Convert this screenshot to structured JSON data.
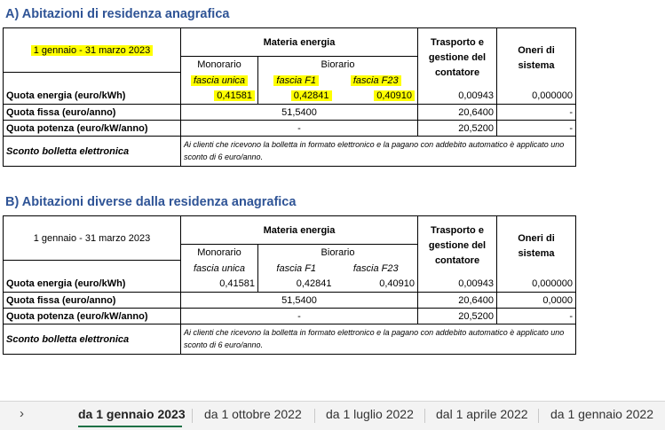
{
  "sections": [
    {
      "title": "A) Abitazioni di residenza anagrafica",
      "period": "1 gennaio - 31 marzo 2023",
      "materia_energia": "Materia energia",
      "monorario": "Monorario",
      "biorario": "Biorario",
      "fascia_unica": "fascia unica",
      "fascia_f1": "fascia F1",
      "fascia_f23": "fascia F23",
      "trasporto_header": "Trasporto e gestione del contatore",
      "oneri_header": "Oneri di sistema",
      "rows": {
        "quota_energia": {
          "label": "Quota energia (euro/kWh)",
          "unica": "0,41581",
          "f1": "0,42841",
          "f23": "0,40910",
          "trasporto": "0,00943",
          "oneri": "0,000000"
        },
        "quota_fissa": {
          "label": "Quota fissa (euro/anno)",
          "materia": "51,5400",
          "trasporto": "20,6400",
          "oneri": "-"
        },
        "quota_potenza": {
          "label": "Quota potenza (euro/kW/anno)",
          "materia": "-",
          "trasporto": "20,5200",
          "oneri": "-"
        },
        "sconto": {
          "label": "Sconto bolletta elettronica",
          "note": "Ai clienti che ricevono la bolletta in formato elettronico e la pagano con addebito automatico è applicato uno sconto di 6 euro/anno."
        }
      }
    },
    {
      "title": "B) Abitazioni diverse dalla residenza anagrafica",
      "period": "1 gennaio - 31 marzo 2023",
      "materia_energia": "Materia energia",
      "monorario": "Monorario",
      "biorario": "Biorario",
      "fascia_unica": "fascia unica",
      "fascia_f1": "fascia F1",
      "fascia_f23": "fascia F23",
      "trasporto_header": "Trasporto e gestione del contatore",
      "oneri_header": "Oneri di sistema",
      "rows": {
        "quota_energia": {
          "label": "Quota energia (euro/kWh)",
          "unica": "0,41581",
          "f1": "0,42841",
          "f23": "0,40910",
          "trasporto": "0,00943",
          "oneri": "0,000000"
        },
        "quota_fissa": {
          "label": "Quota fissa (euro/anno)",
          "materia": "51,5400",
          "trasporto": "20,6400",
          "oneri": "0,0000"
        },
        "quota_potenza": {
          "label": "Quota potenza (euro/kW/anno)",
          "materia": "-",
          "trasporto": "20,5200",
          "oneri": "-"
        },
        "sconto": {
          "label": "Sconto bolletta elettronica",
          "note": "Ai clienti che ricevono la bolletta in formato elettronico e la pagano con addebito automatico è applicato uno sconto di 6 euro/anno."
        }
      }
    }
  ],
  "tabs": {
    "nav": "›",
    "items": [
      "da 1 gennaio 2023",
      "da 1 ottobre 2022",
      "da 1 luglio 2022",
      "dal 1 aprile 2022",
      "da 1 gennaio 2022"
    ],
    "active_index": 0,
    "accent_color": "#1e7145"
  },
  "highlight_color": "#ffff00",
  "title_color": "#2f5496"
}
